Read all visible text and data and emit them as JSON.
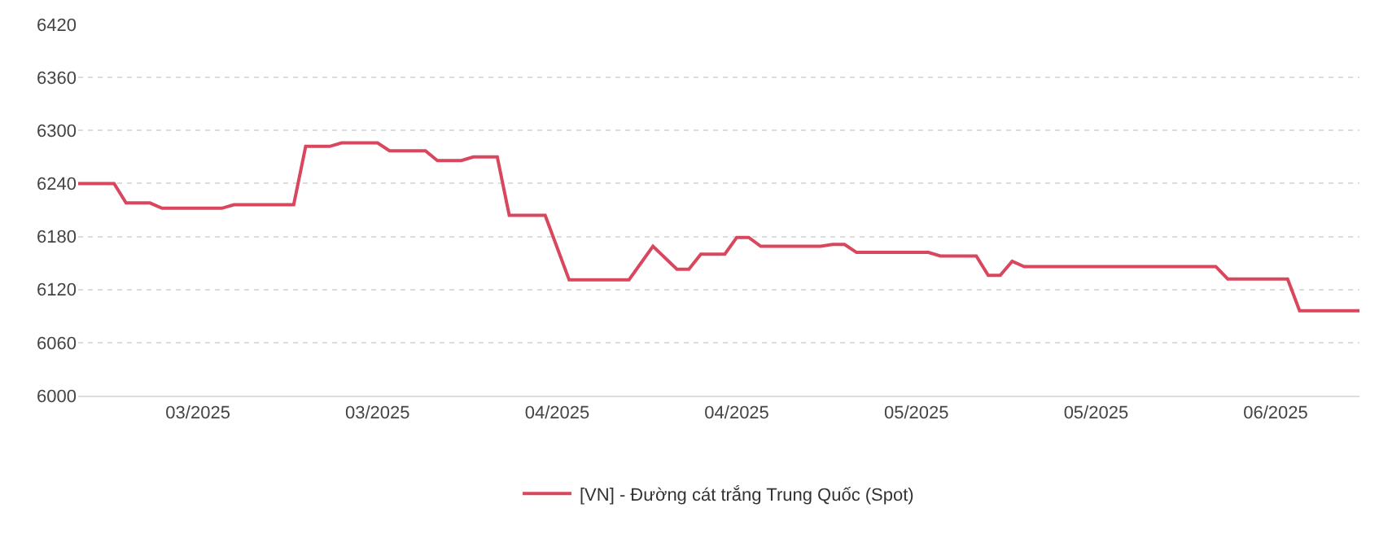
{
  "chart_data": {
    "type": "line",
    "x": [
      "2025-02-26",
      "2025-03-01",
      "2025-03-02",
      "2025-03-04",
      "2025-03-05",
      "2025-03-10",
      "2025-03-11",
      "2025-03-16",
      "2025-03-17",
      "2025-03-19",
      "2025-03-20",
      "2025-03-23",
      "2025-03-24",
      "2025-03-27",
      "2025-03-28",
      "2025-03-30",
      "2025-03-31",
      "2025-04-02",
      "2025-04-03",
      "2025-04-06",
      "2025-04-08",
      "2025-04-13",
      "2025-04-15",
      "2025-04-17",
      "2025-04-18",
      "2025-04-19",
      "2025-04-21",
      "2025-04-22",
      "2025-04-23",
      "2025-04-24",
      "2025-04-29",
      "2025-04-30",
      "2025-05-01",
      "2025-05-02",
      "2025-05-08",
      "2025-05-09",
      "2025-05-12",
      "2025-05-13",
      "2025-05-14",
      "2025-05-15",
      "2025-05-16",
      "2025-06-01",
      "2025-06-02",
      "2025-06-07",
      "2025-06-08",
      "2025-06-13"
    ],
    "series": [
      {
        "name": "[VN] - Đường cát trắng Trung Quốc (Spot)",
        "color": "#d9475e",
        "values": [
          6240,
          6240,
          6218,
          6218,
          6212,
          6212,
          6216,
          6216,
          6282,
          6282,
          6286,
          6286,
          6277,
          6277,
          6266,
          6266,
          6270,
          6270,
          6204,
          6204,
          6131,
          6131,
          6169,
          6143,
          6143,
          6160,
          6160,
          6179,
          6179,
          6169,
          6169,
          6171,
          6171,
          6162,
          6162,
          6158,
          6158,
          6136,
          6136,
          6152,
          6146,
          6146,
          6132,
          6132,
          6096,
          6096
        ]
      }
    ],
    "xlim": [
      "2025-02-26",
      "2025-06-13"
    ],
    "xticks": [
      {
        "value": "2025-03-08",
        "label": "03/2025"
      },
      {
        "value": "2025-03-23",
        "label": "03/2025"
      },
      {
        "value": "2025-04-07",
        "label": "04/2025"
      },
      {
        "value": "2025-04-22",
        "label": "04/2025"
      },
      {
        "value": "2025-05-07",
        "label": "05/2025"
      },
      {
        "value": "2025-05-22",
        "label": "05/2025"
      },
      {
        "value": "2025-06-06",
        "label": "06/2025"
      }
    ],
    "ylim": [
      6000,
      6420
    ],
    "yticks": [
      6000,
      6060,
      6120,
      6180,
      6240,
      6300,
      6360,
      6420
    ],
    "grid": "y",
    "legend": "bottom",
    "marker": "none",
    "line_style": "solid"
  }
}
